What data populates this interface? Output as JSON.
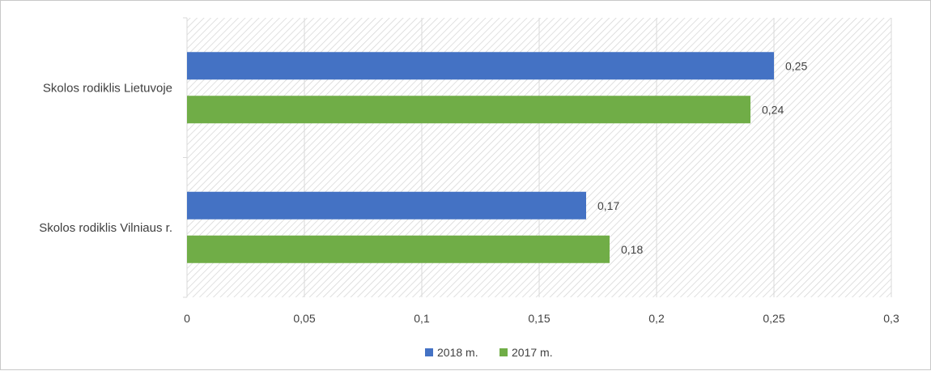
{
  "chart_data": {
    "type": "bar",
    "orientation": "horizontal",
    "categories": [
      "Skolos rodiklis Lietuvoje",
      "Skolos rodiklis Vilniaus r."
    ],
    "series": [
      {
        "name": "2018 m.",
        "values": [
          0.25,
          0.17
        ],
        "labels": [
          "0,25",
          "0,17"
        ],
        "color": "#4472C4"
      },
      {
        "name": "2017 m.",
        "values": [
          0.24,
          0.18
        ],
        "labels": [
          "0,24",
          "0,18"
        ],
        "color": "#70AD47"
      }
    ],
    "xlim": [
      0,
      0.3
    ],
    "x_ticks": [
      0,
      0.05,
      0.1,
      0.15,
      0.2,
      0.25,
      0.3
    ],
    "x_tick_labels": [
      "0",
      "0,05",
      "0,1",
      "0,15",
      "0,2",
      "0,25",
      "0,3"
    ],
    "grid": true,
    "plot_background": "diagonal-hatch",
    "legend_position": "bottom",
    "title": "",
    "xlabel": "",
    "ylabel": ""
  }
}
